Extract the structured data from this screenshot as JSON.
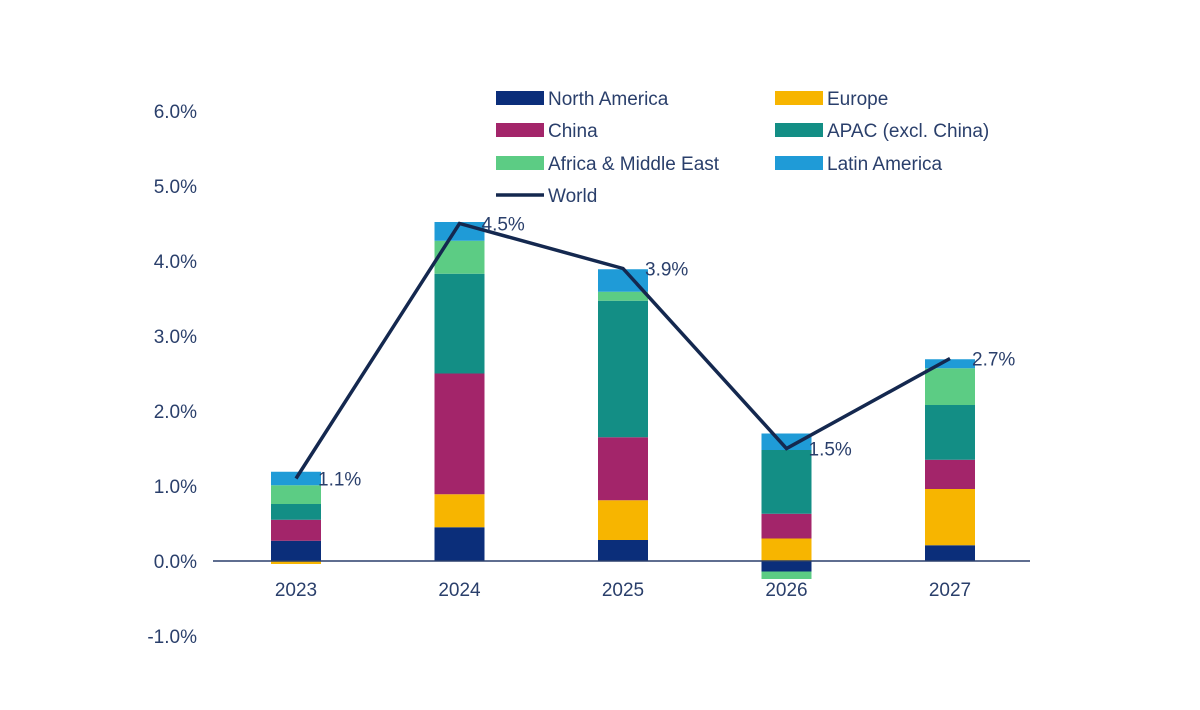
{
  "chart_data": {
    "type": "bar",
    "stacked": true,
    "categories": [
      "2023",
      "2024",
      "2025",
      "2026",
      "2027"
    ],
    "ylim": [
      -1.0,
      6.0
    ],
    "y_ticks": [
      "6.0%",
      "5.0%",
      "4.0%",
      "3.0%",
      "2.0%",
      "1.0%",
      "0.0%",
      "-1.0%"
    ],
    "y_tick_values": [
      6.0,
      5.0,
      4.0,
      3.0,
      2.0,
      1.0,
      0.0,
      -1.0
    ],
    "grid": false,
    "legend_position": "top-right",
    "series": [
      {
        "name": "North America",
        "color": "#0b2e7a",
        "values": [
          0.27,
          0.45,
          0.28,
          -0.14,
          0.21
        ]
      },
      {
        "name": "Europe",
        "color": "#f7b500",
        "values": [
          -0.04,
          0.44,
          0.53,
          0.3,
          0.75
        ]
      },
      {
        "name": "China",
        "color": "#a3256a",
        "values": [
          0.28,
          1.61,
          0.84,
          0.33,
          0.39
        ]
      },
      {
        "name": "APAC (excl. China)",
        "color": "#138e85",
        "values": [
          0.21,
          1.33,
          1.82,
          0.85,
          0.73
        ]
      },
      {
        "name": "Africa & Middle East",
        "color": "#5ccc84",
        "values": [
          0.25,
          0.44,
          0.12,
          -0.1,
          0.49
        ]
      },
      {
        "name": "Latin America",
        "color": "#1f9bd7",
        "values": [
          0.18,
          0.25,
          0.3,
          0.22,
          0.12
        ]
      }
    ],
    "line": {
      "name": "World",
      "color": "#14284f",
      "values": [
        1.1,
        4.5,
        3.9,
        1.5,
        2.7
      ],
      "labels": [
        "1.1%",
        "4.5%",
        "3.9%",
        "1.5%",
        "2.7%"
      ]
    }
  }
}
